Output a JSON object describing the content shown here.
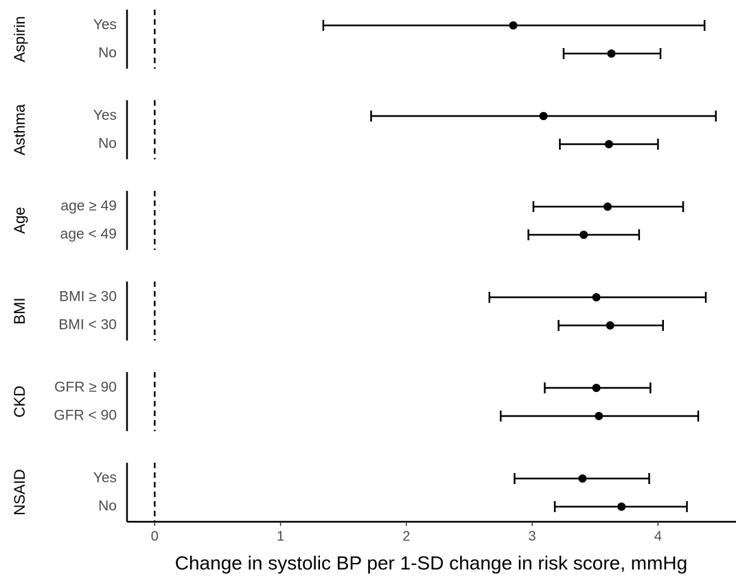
{
  "chart_data": {
    "type": "forest",
    "x_label": "Change in systolic BP per 1-SD change in risk score, mmHg",
    "xlim": [
      -0.22,
      4.62
    ],
    "xticks": [
      0,
      1,
      2,
      3,
      4
    ],
    "reference": 0,
    "color": "#000000",
    "groups": [
      {
        "name": "Aspirin",
        "categories": [
          "Yes",
          "No"
        ],
        "values": [
          2.85,
          3.63
        ],
        "lower": [
          1.34,
          3.25
        ],
        "upper": [
          4.37,
          4.02
        ]
      },
      {
        "name": "Asthma",
        "categories": [
          "Yes",
          "No"
        ],
        "values": [
          3.09,
          3.61
        ],
        "lower": [
          1.72,
          3.22
        ],
        "upper": [
          4.46,
          4.0
        ]
      },
      {
        "name": "Age",
        "categories": [
          "age ≥ 49",
          "age < 49"
        ],
        "values": [
          3.6,
          3.41
        ],
        "lower": [
          3.01,
          2.97
        ],
        "upper": [
          4.2,
          3.85
        ]
      },
      {
        "name": "BMI",
        "categories": [
          "BMI ≥ 30",
          "BMI < 30"
        ],
        "values": [
          3.51,
          3.62
        ],
        "lower": [
          2.66,
          3.21
        ],
        "upper": [
          4.38,
          4.04
        ]
      },
      {
        "name": "CKD",
        "categories": [
          "GFR ≥ 90",
          "GFR < 90"
        ],
        "values": [
          3.51,
          3.53
        ],
        "lower": [
          3.1,
          2.75
        ],
        "upper": [
          3.94,
          4.32
        ]
      },
      {
        "name": "NSAID",
        "categories": [
          "Yes",
          "No"
        ],
        "values": [
          3.4,
          3.71
        ],
        "lower": [
          2.86,
          3.18
        ],
        "upper": [
          3.93,
          4.23
        ]
      }
    ]
  }
}
